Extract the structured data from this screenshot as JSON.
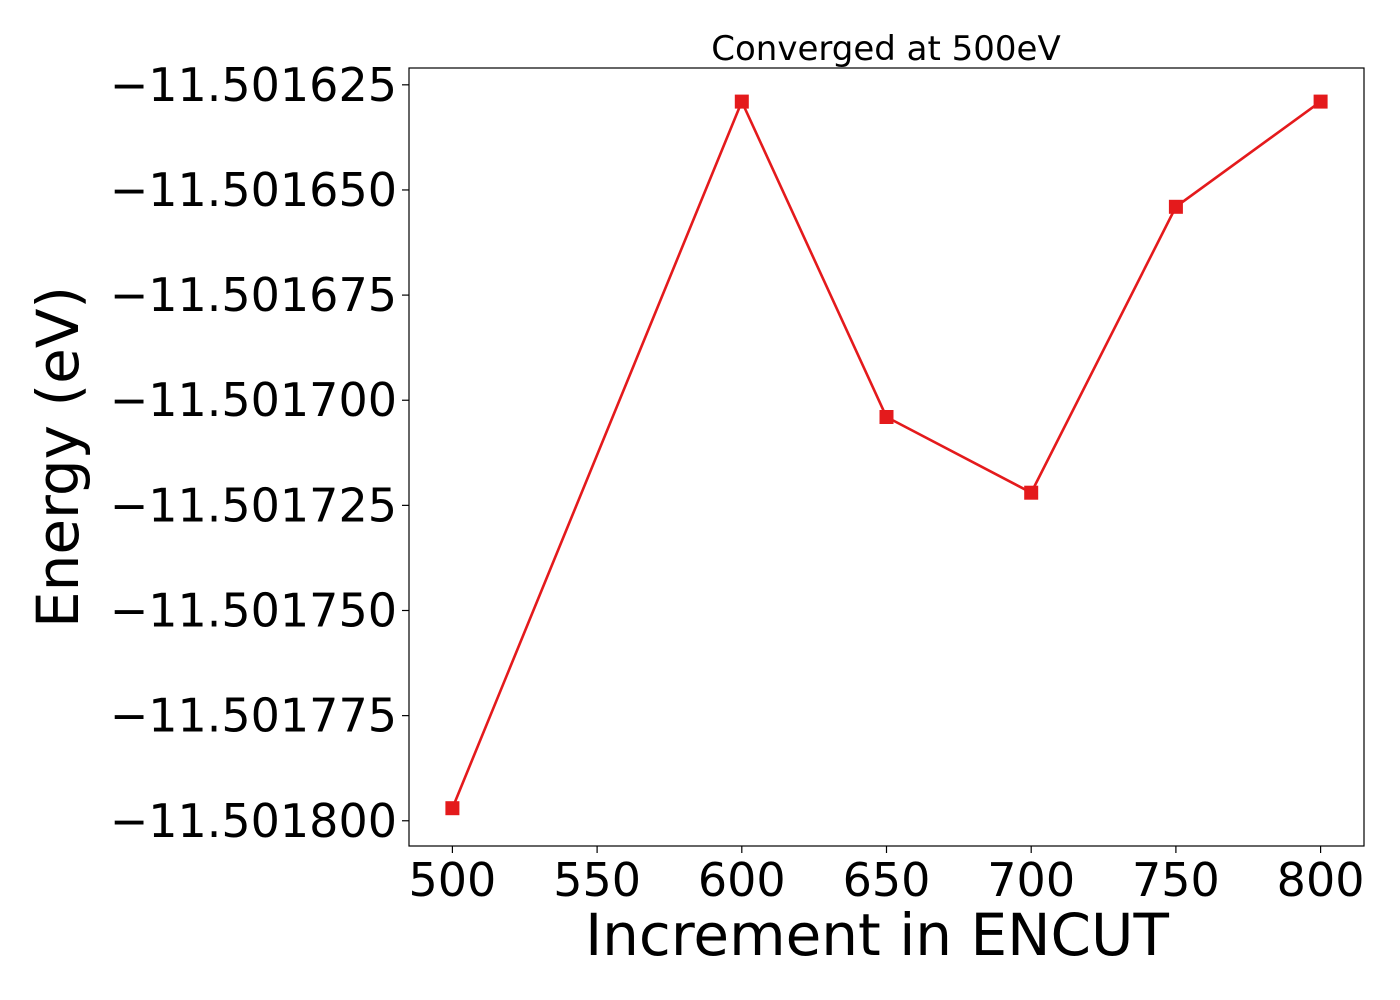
{
  "chart_data": {
    "type": "line",
    "title": "Converged at 500eV",
    "xlabel": "Increment in ENCUT",
    "ylabel": "Energy (eV)",
    "x": [
      500,
      600,
      650,
      700,
      750,
      800
    ],
    "series": [
      {
        "values": [
          -11.501797,
          -11.501629,
          -11.501704,
          -11.501722,
          -11.501654,
          -11.501629
        ],
        "color": "#e41a1c",
        "marker": "square"
      }
    ],
    "xlim": [
      485,
      815
    ],
    "ylim": [
      -11.501806,
      -11.501621
    ],
    "xticks": [
      500,
      550,
      600,
      650,
      700,
      750,
      800
    ],
    "xtick_labels": [
      "500",
      "550",
      "600",
      "650",
      "700",
      "750",
      "800"
    ],
    "yticks": [
      -11.501625,
      -11.50165,
      -11.501675,
      -11.5017,
      -11.501725,
      -11.50175,
      -11.501775,
      -11.5018
    ],
    "ytick_labels": [
      "−11.501625",
      "−11.501650",
      "−11.501675",
      "−11.501700",
      "−11.501725",
      "−11.501750",
      "−11.501775",
      "−11.501800"
    ],
    "grid": false,
    "legend": "none"
  }
}
